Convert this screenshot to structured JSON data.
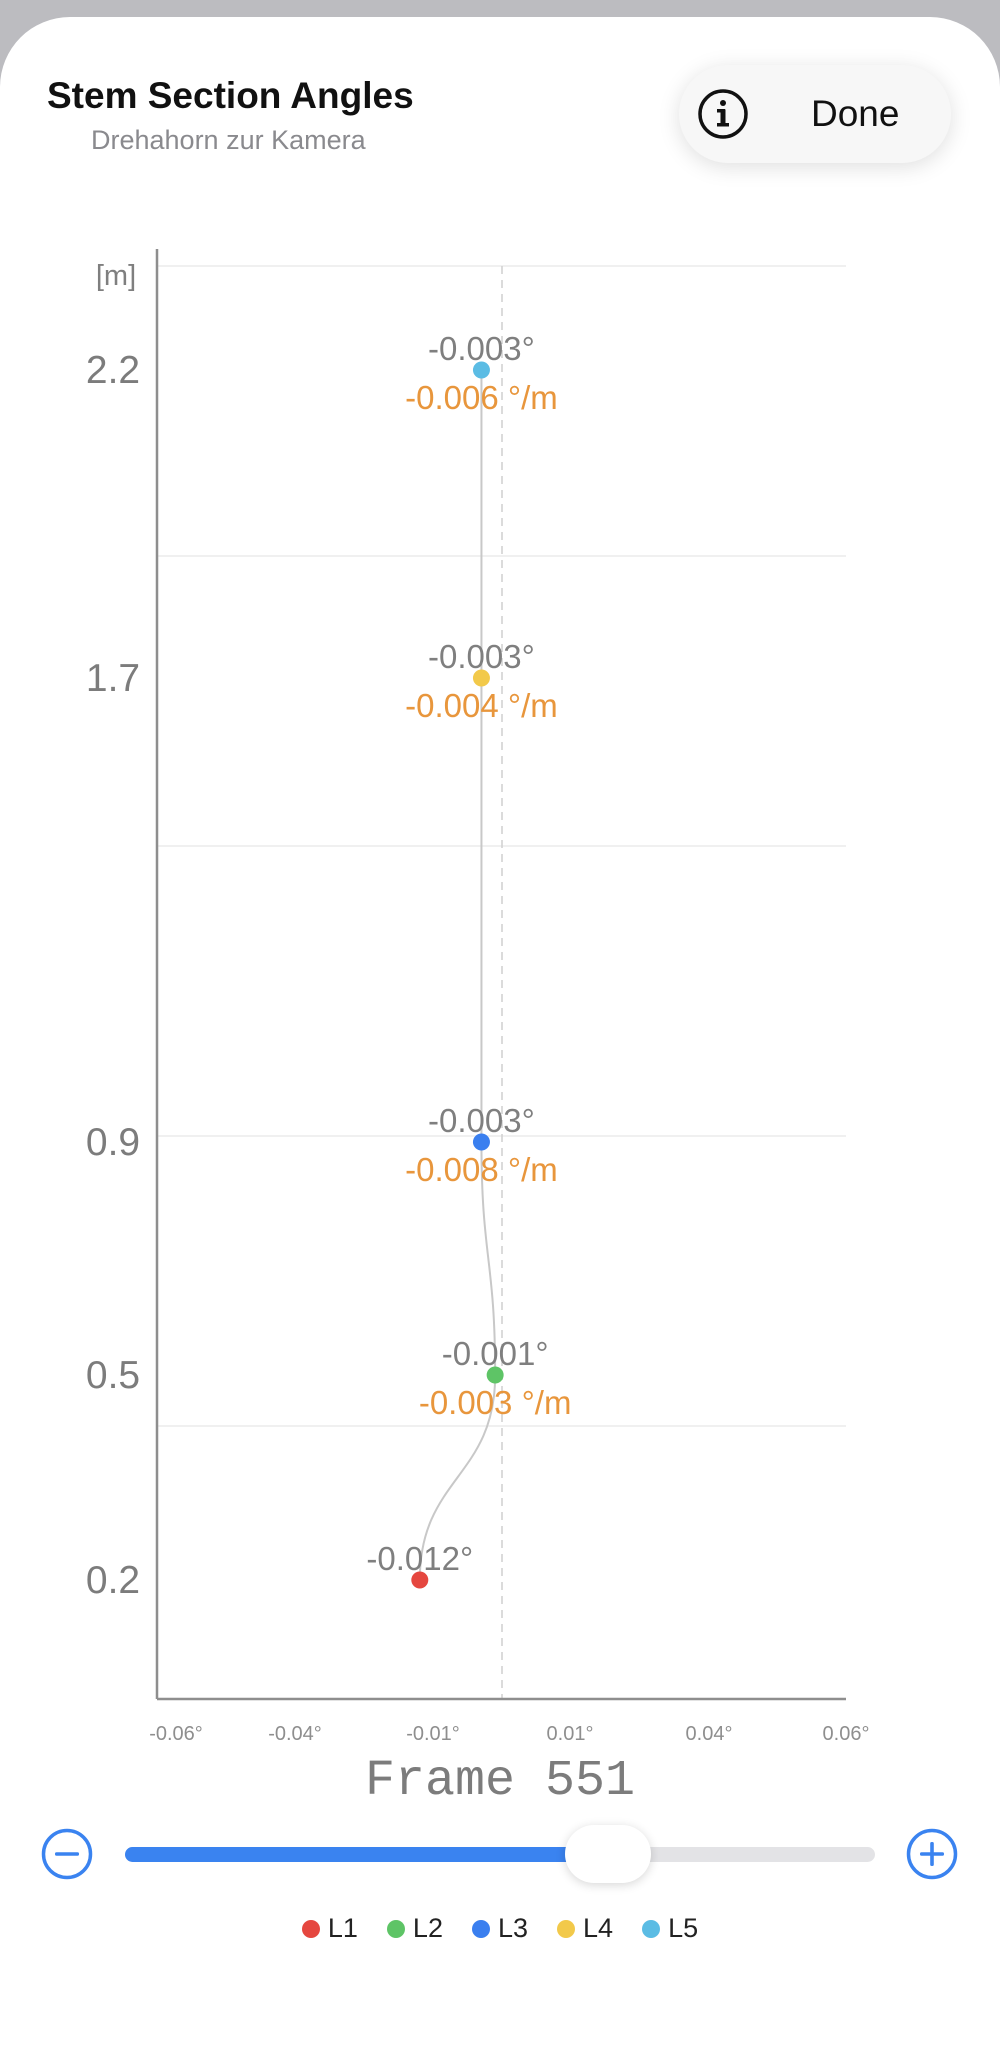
{
  "header": {
    "title": "Stem Section Angles",
    "subtitle": "Drehahorn zur Kamera",
    "done_label": "Done"
  },
  "icons": {
    "info": "info-circle-icon",
    "minus": "minus-circle-icon",
    "plus": "plus-circle-icon"
  },
  "colors": {
    "accent": "#3A83F0",
    "slope_label": "#E8963C",
    "angle_label": "#7F7F7F"
  },
  "chart_data": {
    "type": "scatter",
    "title": "Stem Section Angles",
    "ylabel": "[m]",
    "xlim": [
      -0.06,
      0.06
    ],
    "ylim": [
      0,
      2.7
    ],
    "x_ticks": [
      -0.06,
      -0.04,
      -0.01,
      0.01,
      0.04,
      0.06
    ],
    "x_tick_labels": [
      "-0.06°",
      "-0.04°",
      "-0.01°",
      "0.01°",
      "0.04°",
      "0.06°"
    ],
    "y_ticks": [
      0.2,
      0.5,
      0.9,
      1.7,
      2.2
    ],
    "y_tick_labels": [
      "0.2",
      "0.5",
      "0.9",
      "1.7",
      "2.2"
    ],
    "grid": true,
    "legend_position": "bottom-center",
    "reference_line_x": 0,
    "series": [
      {
        "name": "L1",
        "color": "#E5473F",
        "x": -0.012,
        "y": 0.2,
        "angle_label": "-0.012°",
        "slope_label": ""
      },
      {
        "name": "L2",
        "color": "#5EC466",
        "x": -0.001,
        "y": 0.5,
        "angle_label": "-0.001°",
        "slope_label": "-0.003 °/m"
      },
      {
        "name": "L3",
        "color": "#3A7FEF",
        "x": -0.003,
        "y": 0.9,
        "angle_label": "-0.003°",
        "slope_label": "-0.008 °/m"
      },
      {
        "name": "L4",
        "color": "#F2C94A",
        "x": -0.003,
        "y": 1.7,
        "angle_label": "-0.003°",
        "slope_label": "-0.004 °/m"
      },
      {
        "name": "L5",
        "color": "#5BBCE4",
        "x": -0.003,
        "y": 2.2,
        "angle_label": "-0.003°",
        "slope_label": "-0.006 °/m"
      }
    ]
  },
  "frame": {
    "label": "Frame 551",
    "slider_fraction": 0.69
  }
}
